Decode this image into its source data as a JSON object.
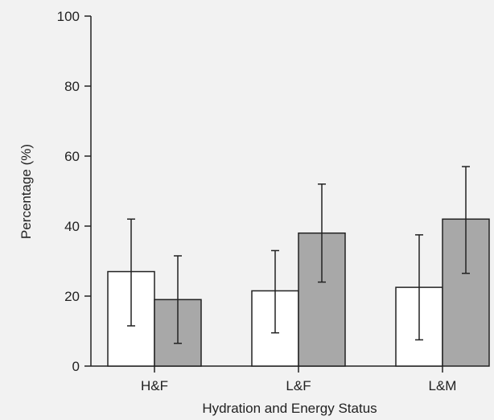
{
  "chart_data": {
    "type": "bar",
    "xlabel": "Hydration and Energy Status",
    "ylabel": "Percentage (%)",
    "ylim": [
      0,
      100
    ],
    "yticks": [
      0,
      20,
      40,
      60,
      80,
      100
    ],
    "categories": [
      "H&F",
      "L&F",
      "L&M"
    ],
    "series": [
      {
        "color": "#ffffff",
        "values": [
          27,
          21.5,
          22.5
        ],
        "err_low": [
          11.5,
          9.5,
          7.5
        ],
        "err_high": [
          42,
          33,
          37.5
        ]
      },
      {
        "color": "#a8a8a8",
        "values": [
          19,
          38,
          42
        ],
        "err_low": [
          6.5,
          24,
          26.5
        ],
        "err_high": [
          31.5,
          52,
          57
        ]
      }
    ],
    "grid": false,
    "legend": "none"
  }
}
